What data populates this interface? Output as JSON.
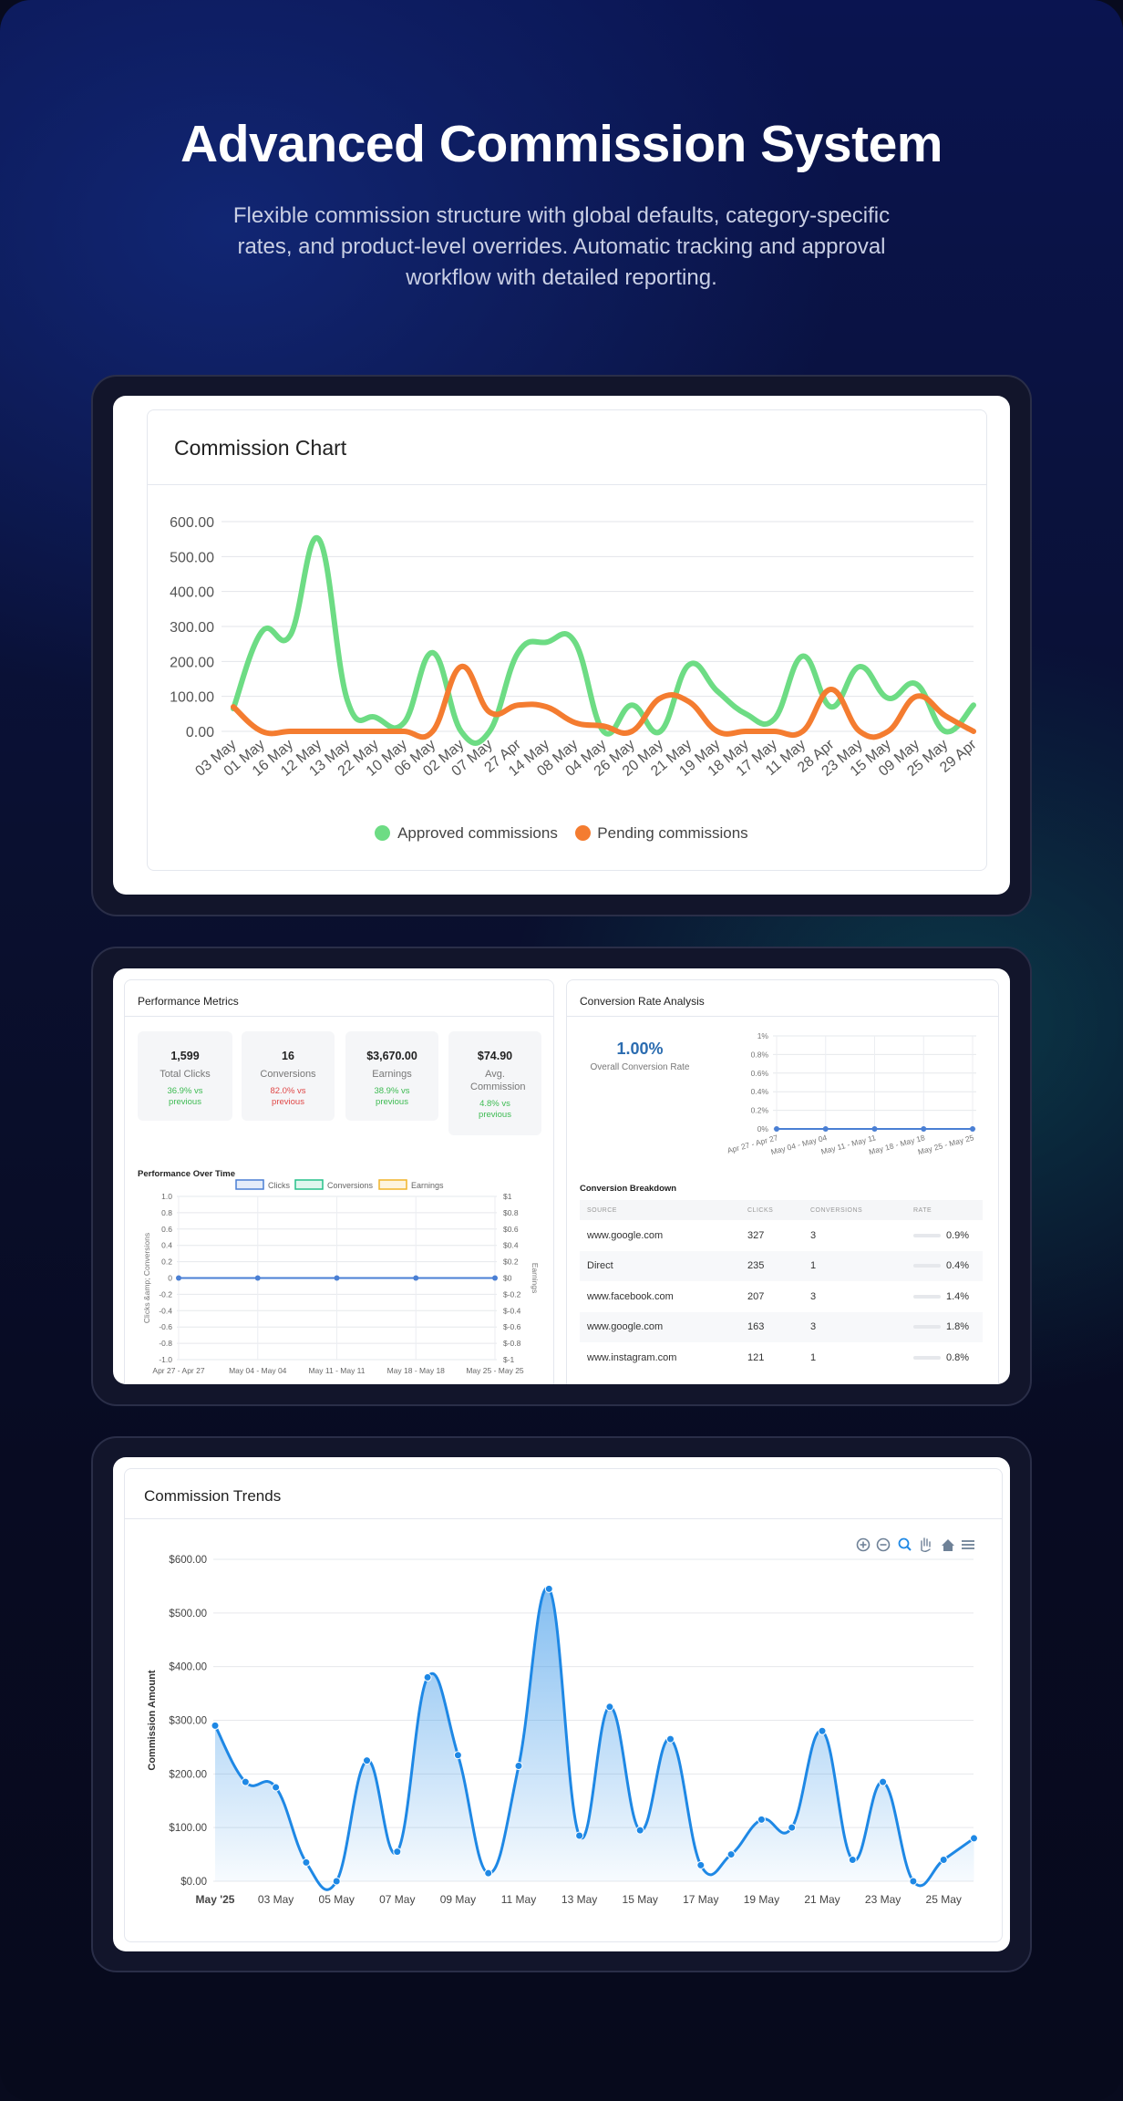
{
  "hero": {
    "title": "Advanced Commission System",
    "subtitle": "Flexible commission structure with  global defaults, category-specific\nrates, and product-level overrides.  Automatic tracking and approval\nworkflow with detailed reporting."
  },
  "colors": {
    "approved": "#6ddc84",
    "pending": "#f47c30",
    "accent_blue": "#1e88e5",
    "clicks": "#4a7fd4",
    "conversions": "#27c08a",
    "earnings": "#f0b428"
  },
  "commission_chart": {
    "title": "Commission Chart",
    "legend": {
      "approved": "Approved commissions",
      "pending": "Pending commissions"
    }
  },
  "performance": {
    "title": "Performance Metrics",
    "metrics": [
      {
        "value": "1,599",
        "label": "Total Clicks",
        "change": "36.9% vs previous",
        "trend": "up"
      },
      {
        "value": "16",
        "label": "Conversions",
        "change": "82.0% vs previous",
        "trend": "down"
      },
      {
        "value": "$3,670.00",
        "label": "Earnings",
        "change": "38.9% vs previous",
        "trend": "up"
      },
      {
        "value": "$74.90",
        "label": "Avg. Commission",
        "change": "4.8% vs previous",
        "trend": "up"
      }
    ],
    "over_time_title": "Performance Over Time",
    "legend": [
      "Clicks",
      "Conversions",
      "Earnings"
    ],
    "left_axis_label": "Clicks &amp; Conversions",
    "right_axis_label": "Earnings"
  },
  "conversion": {
    "title": "Conversion Rate Analysis",
    "overall_value": "1.00%",
    "overall_label": "Overall Conversion Rate",
    "breakdown_title": "Conversion Breakdown",
    "columns": [
      "SOURCE",
      "CLICKS",
      "CONVERSIONS",
      "RATE"
    ],
    "rows": [
      {
        "source": "www.google.com",
        "clicks": "327",
        "conversions": "3",
        "rate": "0.9%"
      },
      {
        "source": "Direct",
        "clicks": "235",
        "conversions": "1",
        "rate": "0.4%"
      },
      {
        "source": "www.facebook.com",
        "clicks": "207",
        "conversions": "3",
        "rate": "1.4%"
      },
      {
        "source": "www.google.com",
        "clicks": "163",
        "conversions": "3",
        "rate": "1.8%"
      },
      {
        "source": "www.instagram.com",
        "clicks": "121",
        "conversions": "1",
        "rate": "0.8%"
      }
    ]
  },
  "trends": {
    "title": "Commission Trends",
    "y_axis_label": "Commission Amount",
    "toolbar_icons": [
      "zoom-in-icon",
      "zoom-out-icon",
      "zoom-select-icon",
      "pan-hand-icon",
      "home-icon",
      "menu-icon"
    ]
  },
  "chart_data": [
    {
      "type": "line",
      "title": "Commission Chart",
      "categories": [
        "03 May",
        "01 May",
        "16 May",
        "12 May",
        "13 May",
        "22 May",
        "10 May",
        "06 May",
        "02 May",
        "07 May",
        "27 Apr",
        "14 May",
        "08 May",
        "04 May",
        "26 May",
        "20 May",
        "21 May",
        "19 May",
        "18 May",
        "17 May",
        "11 May",
        "28 Apr",
        "23 May",
        "15 May",
        "09 May",
        "25 May",
        "29 Apr"
      ],
      "ylim": [
        0,
        600
      ],
      "yticks": [
        "600.00",
        "500.00",
        "400.00",
        "300.00",
        "200.00",
        "100.00",
        "0.00"
      ],
      "series": [
        {
          "name": "Approved commissions",
          "values": [
            65,
            285,
            275,
            550,
            90,
            40,
            25,
            225,
            0,
            0,
            225,
            255,
            255,
            0,
            75,
            0,
            190,
            115,
            50,
            35,
            215,
            70,
            185,
            95,
            135,
            0,
            75
          ]
        },
        {
          "name": "Pending commissions",
          "values": [
            70,
            0,
            0,
            0,
            0,
            0,
            0,
            0,
            185,
            55,
            75,
            70,
            25,
            15,
            0,
            95,
            85,
            0,
            0,
            0,
            0,
            120,
            0,
            0,
            100,
            45,
            0
          ]
        }
      ],
      "legend_position": "bottom"
    },
    {
      "type": "line",
      "title": "Conversion Rate Analysis",
      "categories": [
        "Apr 27 - Apr 27",
        "May 04 - May 04",
        "May 11 - May 11",
        "May 18 - May 18",
        "May 25 - May 25"
      ],
      "yticks": [
        "1%",
        "0.8%",
        "0.6%",
        "0.4%",
        "0.2%",
        "0%"
      ],
      "ylim": [
        0,
        1
      ],
      "series": [
        {
          "values": [
            0,
            0,
            0,
            0,
            0
          ]
        }
      ]
    },
    {
      "type": "line",
      "title": "Performance Over Time",
      "categories": [
        "Apr 27 - Apr 27",
        "May 04 - May 04",
        "May 11 - May 11",
        "May 18 - May 18",
        "May 25 - May 25"
      ],
      "yticks_left": [
        "1.0",
        "0.8",
        "0.6",
        "0.4",
        "0.2",
        "0",
        "-0.2",
        "-0.4",
        "-0.6",
        "-0.8",
        "-1.0"
      ],
      "yticks_right": [
        "$1",
        "$0.8",
        "$0.6",
        "$0.4",
        "$0.2",
        "$0",
        "$-0.2",
        "$-0.4",
        "$-0.6",
        "$-0.8",
        "$-1"
      ],
      "ylim": [
        -1,
        1
      ],
      "series": [
        {
          "name": "Clicks",
          "values": [
            0,
            0,
            0,
            0,
            0
          ]
        },
        {
          "name": "Conversions",
          "values": [
            0,
            0,
            0,
            0,
            0
          ]
        },
        {
          "name": "Earnings",
          "values": [
            0,
            0,
            0,
            0,
            0
          ]
        }
      ],
      "legend_position": "top"
    },
    {
      "type": "area",
      "title": "Commission Trends",
      "ylabel": "Commission Amount",
      "ylim": [
        0,
        600
      ],
      "yticks": [
        "$600.00",
        "$500.00",
        "$400.00",
        "$300.00",
        "$200.00",
        "$100.00",
        "$0.00"
      ],
      "xticks": [
        "May '25",
        "03 May",
        "05 May",
        "07 May",
        "09 May",
        "11 May",
        "13 May",
        "15 May",
        "17 May",
        "19 May",
        "21 May",
        "23 May",
        "25 May"
      ],
      "x": [
        1,
        2,
        3,
        4,
        5,
        6,
        7,
        8,
        9,
        10,
        11,
        12,
        13,
        14,
        15,
        16,
        17,
        18,
        19,
        20,
        21,
        22,
        23,
        24,
        25,
        26
      ],
      "values": [
        290,
        185,
        175,
        35,
        0,
        225,
        55,
        380,
        235,
        15,
        215,
        545,
        85,
        325,
        95,
        265,
        30,
        50,
        115,
        100,
        280,
        40,
        185,
        0,
        40,
        80
      ]
    }
  ]
}
